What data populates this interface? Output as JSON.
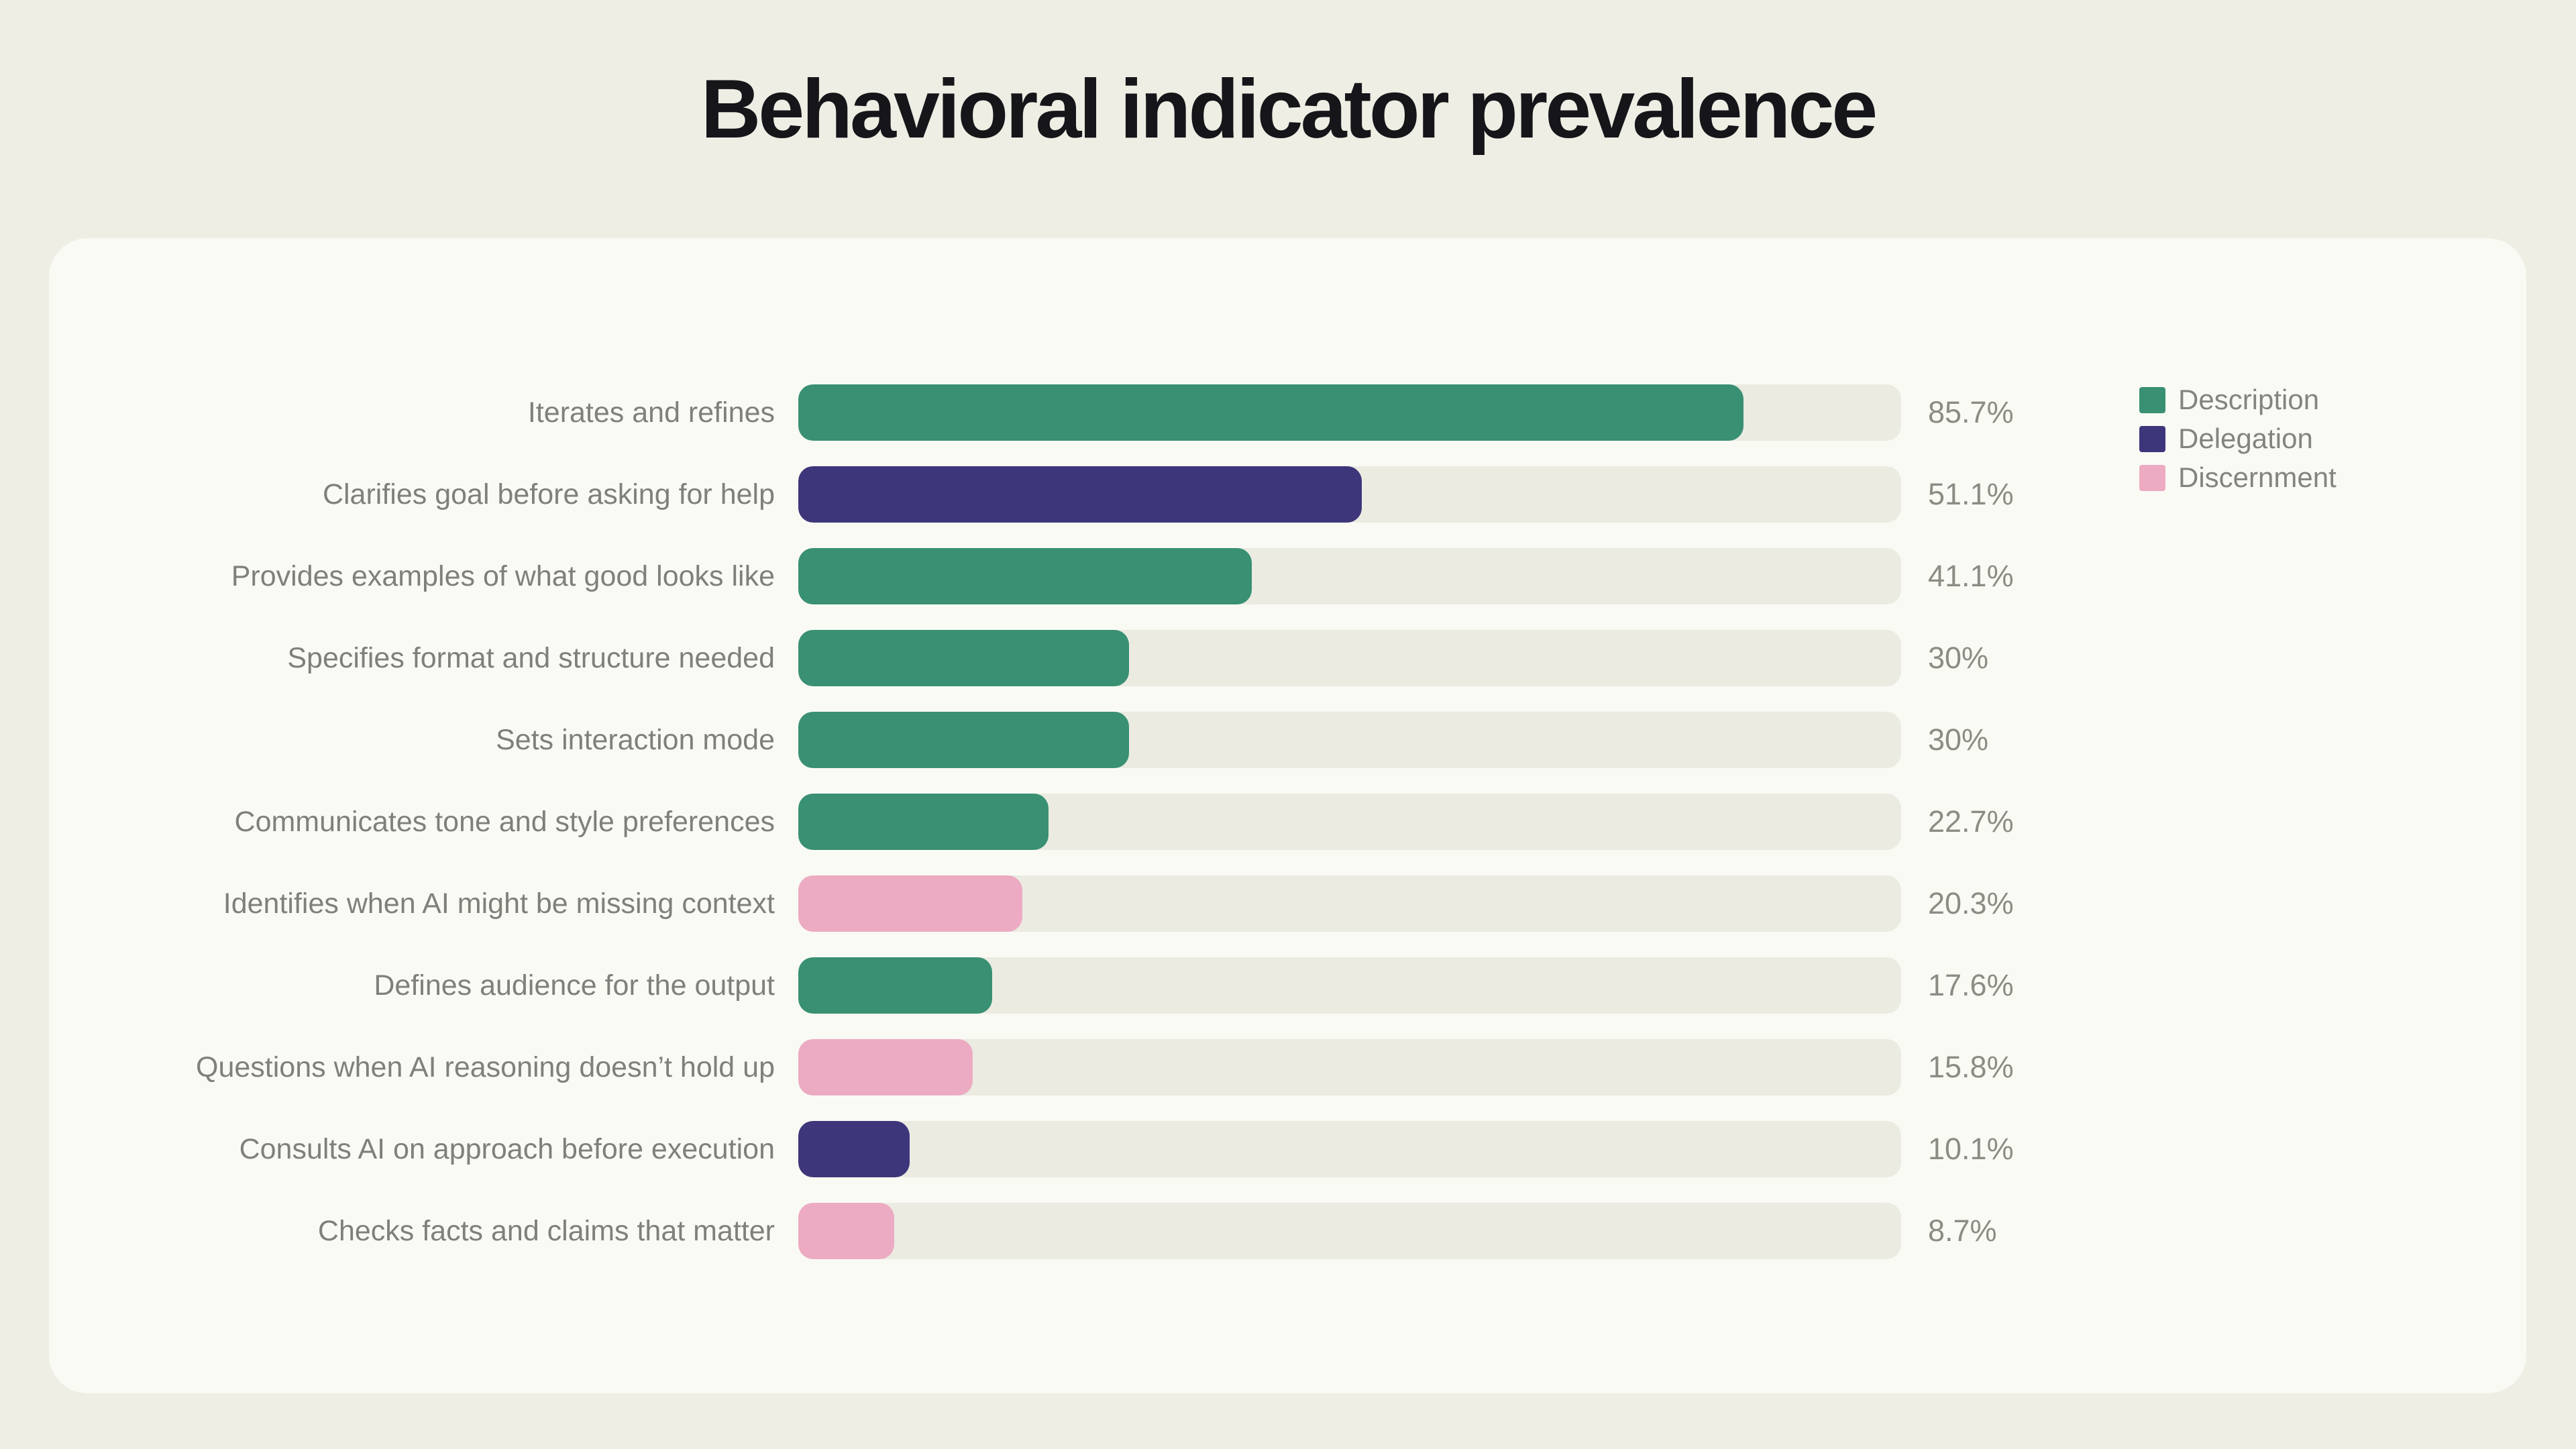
{
  "chart_data": {
    "type": "bar",
    "orientation": "horizontal",
    "title": "Behavioral indicator prevalence",
    "xlabel": "",
    "ylabel": "",
    "axis_max_percent": 100,
    "grid": false,
    "legend_position": "right",
    "legend": [
      "Description",
      "Delegation",
      "Discernment"
    ],
    "series_colors": {
      "Description": "#399073",
      "Delegation": "#3d367a",
      "Discernment": "#ecabc2"
    },
    "bars": [
      {
        "label": "Iterates and refines",
        "value": 85.7,
        "display": "85.7%",
        "series": "Description"
      },
      {
        "label": "Clarifies goal before asking for help",
        "value": 51.1,
        "display": "51.1%",
        "series": "Delegation"
      },
      {
        "label": "Provides examples of what good looks like",
        "value": 41.1,
        "display": "41.1%",
        "series": "Description"
      },
      {
        "label": "Specifies format and structure needed",
        "value": 30,
        "display": "30%",
        "series": "Description"
      },
      {
        "label": "Sets interaction mode",
        "value": 30,
        "display": "30%",
        "series": "Description"
      },
      {
        "label": "Communicates tone and style preferences",
        "value": 22.7,
        "display": "22.7%",
        "series": "Description"
      },
      {
        "label": "Identifies when AI might be missing context",
        "value": 20.3,
        "display": "20.3%",
        "series": "Discernment"
      },
      {
        "label": "Defines audience for the output",
        "value": 17.6,
        "display": "17.6%",
        "series": "Description"
      },
      {
        "label": "Questions when AI reasoning doesn’t hold up",
        "value": 15.8,
        "display": "15.8%",
        "series": "Discernment"
      },
      {
        "label": "Consults AI on approach before execution",
        "value": 10.1,
        "display": "10.1%",
        "series": "Delegation"
      },
      {
        "label": "Checks facts and claims that matter",
        "value": 8.7,
        "display": "8.7%",
        "series": "Discernment"
      }
    ]
  }
}
